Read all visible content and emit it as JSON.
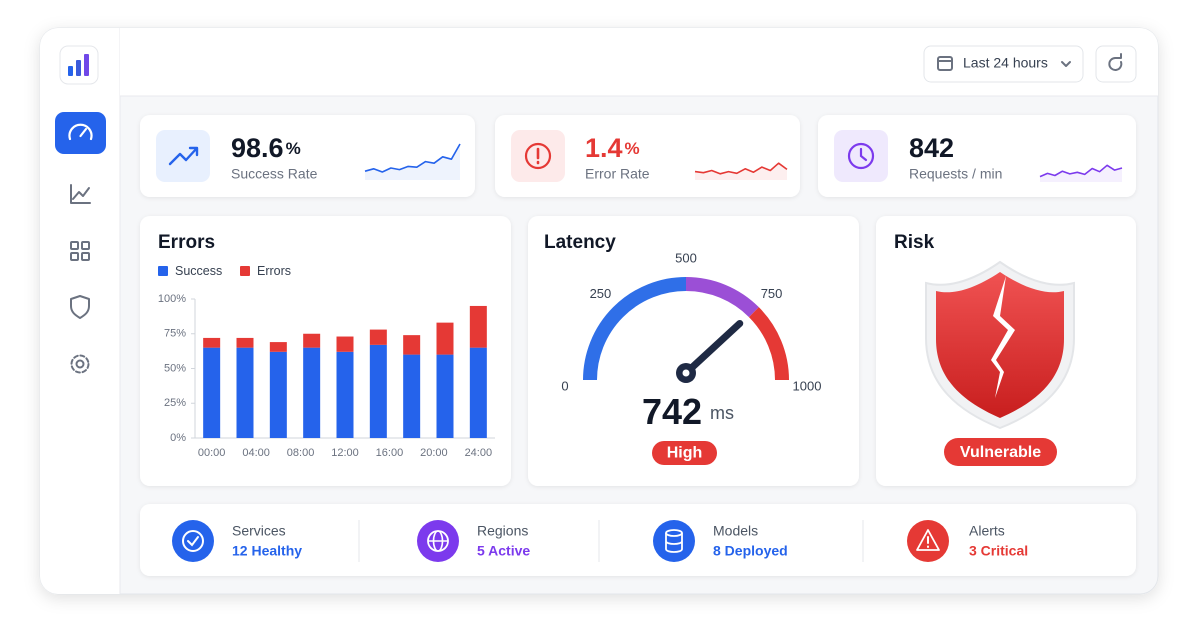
{
  "header": {
    "range": "Last 24 hours"
  },
  "kpis": [
    {
      "value": 98.6,
      "unit": "%",
      "label": "Success Rate",
      "color": "#2563eb",
      "spark": [
        22,
        28,
        20,
        30,
        26,
        34,
        32,
        46,
        42,
        58,
        52,
        90
      ]
    },
    {
      "value": 1.4,
      "unit": "%",
      "label": "Error Rate",
      "color": "#e53935",
      "spark": [
        30,
        26,
        34,
        22,
        30,
        24,
        40,
        28,
        46,
        34,
        60,
        38
      ]
    },
    {
      "value": 842,
      "label": "Requests / min",
      "color": "#7c3aed",
      "spark": [
        20,
        32,
        24,
        40,
        30,
        36,
        28,
        50,
        38,
        62,
        44,
        52
      ]
    }
  ],
  "chart_data": [
    {
      "type": "bar",
      "stacked": true,
      "title": "Errors",
      "categories": [
        null,
        null,
        null,
        null,
        null,
        null,
        null,
        null,
        null
      ],
      "x_labels": [
        "00:00",
        "04:00",
        "08:00",
        "12:00",
        "16:00",
        "20:00",
        "24:00"
      ],
      "series": [
        {
          "name": "Success",
          "color": "#2563eb",
          "values": [
            65,
            65,
            62,
            65,
            62,
            67,
            60,
            60,
            65
          ]
        },
        {
          "name": "Errors",
          "color": "#e53935",
          "values": [
            7,
            7,
            7,
            10,
            11,
            11,
            14,
            23,
            30
          ]
        }
      ],
      "ylim": [
        0,
        100
      ],
      "yticks": [
        {
          "value": 0,
          "label": "0%"
        },
        {
          "value": 25,
          "label": "25%"
        },
        {
          "value": 50,
          "label": "50%"
        },
        {
          "value": 75,
          "label": "75%"
        },
        {
          "value": 100,
          "label": "100%"
        }
      ]
    },
    {
      "type": "gauge",
      "title": "Latency",
      "value": 742,
      "unit": "ms",
      "status": "High",
      "lim": [
        0,
        1000
      ],
      "ticks": [
        0,
        250,
        500,
        750,
        1000
      ],
      "bands": [
        {
          "from": 0,
          "to": 500,
          "color": "#2f6fe8"
        },
        {
          "from": 500,
          "to": 750,
          "color": "#9b4fd6"
        },
        {
          "from": 750,
          "to": 1000,
          "color": "#e53935"
        }
      ]
    }
  ],
  "risk": {
    "title": "Risk",
    "status": "Vulnerable"
  },
  "stats": [
    {
      "label": "Services",
      "value": "12 Healthy",
      "color": "#2563eb"
    },
    {
      "label": "Regions",
      "value": "5 Active",
      "color": "#7c3aed"
    },
    {
      "label": "Models",
      "value": "8 Deployed",
      "color": "#2563eb"
    },
    {
      "label": "Alerts",
      "value": "3 Critical",
      "color": "#e53935"
    }
  ]
}
